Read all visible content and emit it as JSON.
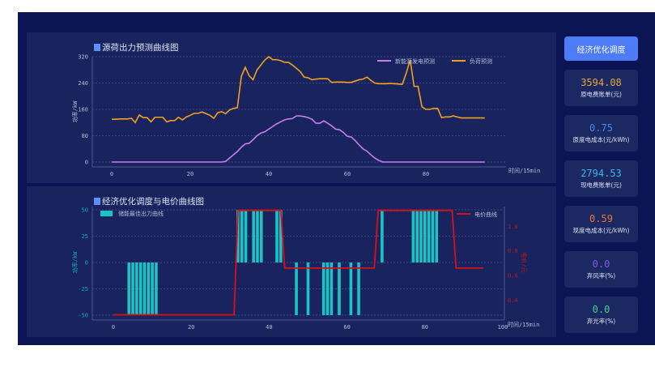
{
  "colors": {
    "pv": "#c77ff0",
    "load": "#f0a01e",
    "bar": "#19c4c4",
    "price": "#d9101a",
    "accent": "#4d7cf6"
  },
  "chart1": {
    "title": "源荷出力预测曲线图",
    "ylabel": "功率/kW",
    "xlabel": "时间/15min",
    "legend": [
      "新能源发电预测",
      "负荷预测"
    ],
    "chart_data": {
      "type": "line",
      "x_range": [
        0,
        95
      ],
      "xticks": [
        0,
        20,
        40,
        60,
        80
      ],
      "yticks": [
        0,
        80,
        160,
        240,
        320
      ],
      "ylim": [
        -15,
        330
      ],
      "grid": true,
      "legend_position": "top-right",
      "series": [
        {
          "name": "新能源发电预测",
          "values": [
            0,
            0,
            0,
            0,
            0,
            0,
            0,
            0,
            0,
            0,
            0,
            0,
            0,
            0,
            0,
            0,
            0,
            0,
            0,
            0,
            0,
            0,
            0,
            0,
            0,
            0,
            0,
            0,
            0,
            2,
            12,
            22,
            32,
            45,
            55,
            57,
            68,
            80,
            88,
            92,
            100,
            108,
            116,
            122,
            128,
            131,
            132,
            140,
            140,
            138,
            135,
            130,
            118,
            118,
            125,
            118,
            110,
            100,
            98,
            90,
            78,
            76,
            65,
            52,
            40,
            33,
            22,
            12,
            5,
            0,
            0,
            0,
            0,
            0,
            0,
            0,
            0,
            0,
            0,
            0,
            0,
            0,
            0,
            0,
            0,
            0,
            0,
            0,
            0,
            0,
            0,
            0,
            0,
            0,
            0,
            0
          ]
        },
        {
          "name": "负荷预测",
          "values": [
            130,
            130,
            131,
            131,
            131,
            133,
            120,
            143,
            135,
            135,
            122,
            136,
            136,
            136,
            122,
            126,
            126,
            136,
            128,
            137,
            142,
            148,
            148,
            152,
            147,
            142,
            133,
            150,
            153,
            147,
            158,
            163,
            165,
            260,
            288,
            262,
            250,
            280,
            295,
            310,
            320,
            311,
            311,
            308,
            303,
            303,
            295,
            285,
            275,
            258,
            256,
            250,
            252,
            253,
            253,
            253,
            242,
            243,
            243,
            243,
            242,
            242,
            246,
            250,
            252,
            258,
            248,
            240,
            238,
            238,
            238,
            239,
            238,
            237,
            236,
            270,
            310,
            230,
            230,
            168,
            160,
            160,
            163,
            163,
            135,
            137,
            137,
            140,
            137,
            134,
            134,
            134,
            134,
            134,
            134,
            134
          ]
        }
      ]
    }
  },
  "chart2": {
    "title": "经济优化调度与电价曲线图",
    "ylabel": "功率/kW",
    "y2label": "电价/元",
    "xlabel": "时间/15min",
    "legend_bar": "储能最佳出力曲线",
    "legend_line": "电价曲线",
    "chart_data": {
      "type": "bar+line",
      "x_range": [
        0,
        95
      ],
      "xticks": [
        0,
        20,
        40,
        60,
        80,
        100
      ],
      "yticks": [
        -50,
        -25,
        0,
        25,
        50
      ],
      "ylim": [
        -55,
        55
      ],
      "y2ticks": [
        "0.4",
        "0.6",
        "0.8",
        "1.0"
      ],
      "grid": true,
      "series": [
        {
          "name": "储能最佳出力曲线",
          "values": [
            0,
            0,
            0,
            0,
            -50,
            -50,
            -50,
            -50,
            -50,
            -50,
            -50,
            -50,
            0,
            0,
            0,
            0,
            0,
            0,
            0,
            0,
            0,
            0,
            0,
            0,
            0,
            0,
            0,
            0,
            0,
            0,
            0,
            0,
            50,
            50,
            50,
            0,
            50,
            50,
            50,
            0,
            0,
            0,
            50,
            50,
            0,
            0,
            0,
            -50,
            0,
            0,
            -50,
            0,
            0,
            0,
            -50,
            -50,
            -50,
            0,
            -50,
            0,
            0,
            -50,
            0,
            -50,
            0,
            0,
            0,
            0,
            0,
            50,
            0,
            0,
            0,
            0,
            0,
            0,
            0,
            50,
            50,
            50,
            50,
            50,
            50,
            50,
            0,
            0,
            0,
            0,
            0,
            0,
            0,
            0,
            0,
            0,
            0,
            0
          ]
        },
        {
          "name": "电价曲线",
          "values": [
            0.28,
            0.28,
            0.28,
            0.28,
            0.28,
            0.28,
            0.28,
            0.28,
            0.28,
            0.28,
            0.28,
            0.28,
            0.28,
            0.28,
            0.28,
            0.28,
            0.28,
            0.28,
            0.28,
            0.28,
            0.28,
            0.28,
            0.28,
            0.28,
            0.28,
            0.28,
            0.28,
            0.28,
            0.28,
            0.28,
            0.28,
            0.28,
            1.13,
            1.13,
            1.13,
            1.13,
            1.13,
            1.13,
            1.13,
            1.13,
            1.13,
            1.13,
            1.13,
            1.13,
            0.66,
            0.66,
            0.66,
            0.66,
            0.66,
            0.66,
            0.66,
            0.66,
            0.66,
            0.66,
            0.66,
            0.66,
            0.66,
            0.66,
            0.66,
            0.66,
            0.66,
            0.66,
            0.66,
            0.66,
            0.66,
            0.66,
            0.66,
            0.66,
            1.13,
            1.13,
            1.13,
            1.13,
            1.13,
            1.13,
            1.13,
            1.13,
            1.13,
            1.13,
            1.13,
            1.13,
            1.13,
            1.13,
            1.13,
            1.13,
            1.13,
            1.13,
            1.13,
            1.13,
            0.66,
            0.66,
            0.66,
            0.66,
            0.66,
            0.66,
            0.66,
            0.66
          ]
        }
      ]
    }
  },
  "side": {
    "button": "经济优化调度",
    "cards": [
      {
        "value": "3594.08",
        "label": "原电费账单(元)",
        "color": "#e8a93a"
      },
      {
        "value": "0.75",
        "label": "原度电成本(元/kWh)",
        "color": "#3f8be8"
      },
      {
        "value": "2794.53",
        "label": "现电费账单(元)",
        "color": "#35b8e8"
      },
      {
        "value": "0.59",
        "label": "现度电成本(元/kWh)",
        "color": "#e8743a"
      },
      {
        "value": "0.0",
        "label": "弃风率(%)",
        "color": "#7a5ce8"
      },
      {
        "value": "0.0",
        "label": "弃光率(%)",
        "color": "#3ed48a"
      }
    ]
  }
}
